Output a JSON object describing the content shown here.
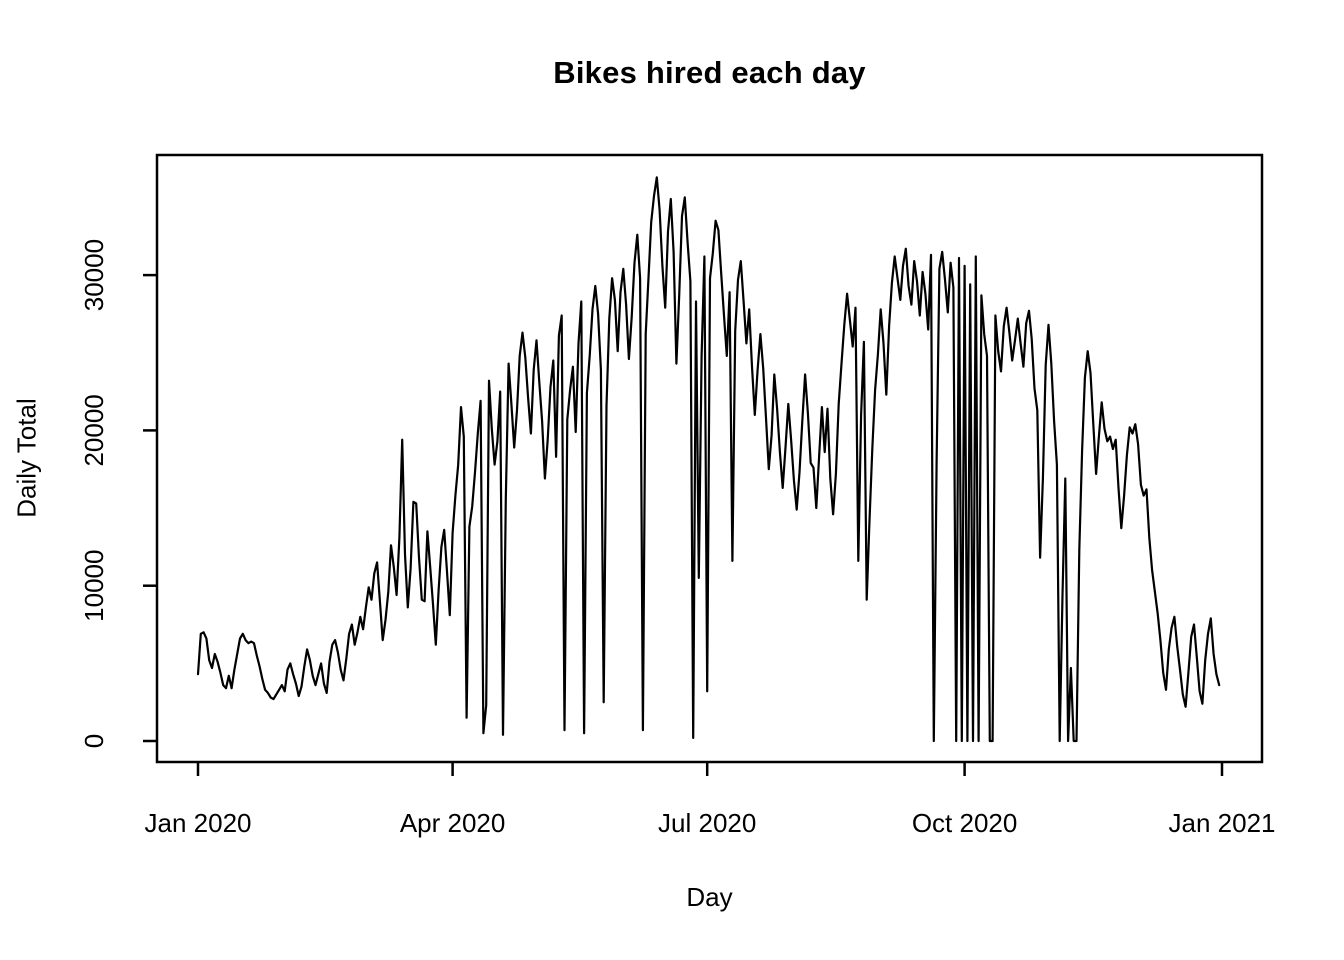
{
  "chart_data": {
    "type": "line",
    "title": "Bikes hired each day",
    "xlabel": "Day",
    "ylabel": "Daily Total",
    "x_tick_labels": [
      "Jan 2020",
      "Apr 2020",
      "Jul 2020",
      "Oct 2020",
      "Jan 2021"
    ],
    "x_tick_days": [
      0,
      91,
      182,
      274,
      366
    ],
    "y_ticks": [
      0,
      10000,
      20000,
      30000
    ],
    "y_tick_labels": [
      "0",
      "10000",
      "20000",
      "30000"
    ],
    "ylim": [
      0,
      36500
    ],
    "xlim_days": [
      0,
      366
    ],
    "grid": false,
    "legend": "none",
    "line_color": "#000000",
    "series": [
      {
        "name": "daily_total",
        "start_label": "Jan 2020",
        "values": [
          4300,
          6900,
          7000,
          6600,
          5200,
          4700,
          5600,
          5100,
          4400,
          3600,
          3400,
          4200,
          3400,
          4600,
          5600,
          6600,
          6900,
          6500,
          6300,
          6400,
          6300,
          5500,
          4800,
          4000,
          3300,
          3100,
          2800,
          2700,
          3000,
          3300,
          3600,
          3200,
          4600,
          5000,
          4300,
          3700,
          2900,
          3500,
          4800,
          5900,
          5200,
          4200,
          3600,
          4300,
          5000,
          3700,
          3100,
          5100,
          6200,
          6500,
          5700,
          4600,
          3900,
          5300,
          6900,
          7500,
          6200,
          7000,
          8000,
          7200,
          8600,
          9900,
          9100,
          10800,
          11500,
          9000,
          6500,
          7800,
          9600,
          12600,
          11200,
          9400,
          13100,
          19400,
          12000,
          8600,
          11100,
          15400,
          15300,
          11800,
          9100,
          9000,
          13500,
          11200,
          8800,
          6200,
          9700,
          12500,
          13600,
          10900,
          8100,
          13400,
          15800,
          17800,
          21500,
          19600,
          1500,
          13800,
          15100,
          17300,
          19800,
          21900,
          500,
          2300,
          23200,
          20100,
          17800,
          19300,
          22500,
          400,
          15600,
          24300,
          21700,
          18900,
          21300,
          24800,
          26300,
          24700,
          22100,
          19800,
          23900,
          25800,
          23100,
          20600,
          16900,
          19400,
          22800,
          24500,
          18300,
          26100,
          27400,
          700,
          20700,
          22600,
          24100,
          19900,
          25600,
          28300,
          500,
          22400,
          24800,
          27800,
          29300,
          27500,
          23900,
          2500,
          21600,
          27200,
          29800,
          28400,
          25100,
          28900,
          30400,
          28100,
          24600,
          27300,
          30800,
          32600,
          29800,
          700,
          26200,
          29700,
          33400,
          35100,
          36300,
          34200,
          30600,
          27900,
          32800,
          34900,
          31500,
          24300,
          28700,
          33800,
          35000,
          32100,
          29600,
          200,
          28300,
          10500,
          24800,
          31200,
          3200,
          29800,
          31400,
          33500,
          32900,
          30100,
          27400,
          24800,
          28900,
          11600,
          26400,
          29700,
          30900,
          28300,
          25600,
          27800,
          24100,
          21000,
          23900,
          26200,
          24000,
          20800,
          17500,
          19700,
          23600,
          21400,
          18600,
          16300,
          18900,
          21700,
          19400,
          16800,
          14900,
          17300,
          20600,
          23600,
          21100,
          17900,
          17600,
          15000,
          18300,
          21500,
          18600,
          21400,
          16900,
          14600,
          17200,
          21700,
          24300,
          26800,
          28800,
          27100,
          25400,
          27900,
          11600,
          21000,
          25700,
          9100,
          14200,
          18800,
          22600,
          24900,
          27800,
          25600,
          22300,
          26700,
          29500,
          31200,
          29800,
          28400,
          30600,
          31700,
          29300,
          28100,
          30900,
          29600,
          27400,
          30200,
          28800,
          26500,
          31300,
          0,
          17900,
          30400,
          31500,
          29700,
          27600,
          30800,
          29200,
          0,
          31100,
          0,
          30600,
          0,
          29400,
          0,
          31200,
          0,
          28700,
          26200,
          24800,
          0,
          0,
          27400,
          25100,
          23800,
          26700,
          27900,
          26300,
          24500,
          25800,
          27200,
          25600,
          24100,
          26900,
          27700,
          25900,
          22700,
          21300,
          11800,
          16900,
          24200,
          26800,
          24300,
          20600,
          17800,
          0,
          9400,
          16900,
          0,
          4700,
          0,
          0,
          12300,
          18700,
          23400,
          25100,
          23700,
          20400,
          17200,
          19600,
          21800,
          20100,
          19300,
          19600,
          18800,
          19400,
          16300,
          13700,
          15800,
          18400,
          20200,
          19800,
          20400,
          19100,
          16500,
          15800,
          16200,
          13100,
          11000,
          9600,
          8200,
          6500,
          4400,
          3300,
          5900,
          7300,
          8000,
          6100,
          4600,
          3000,
          2200,
          4400,
          6700,
          7500,
          5400,
          3200,
          2400,
          5200,
          6900,
          7900,
          5600,
          4300,
          3600
        ]
      }
    ]
  }
}
